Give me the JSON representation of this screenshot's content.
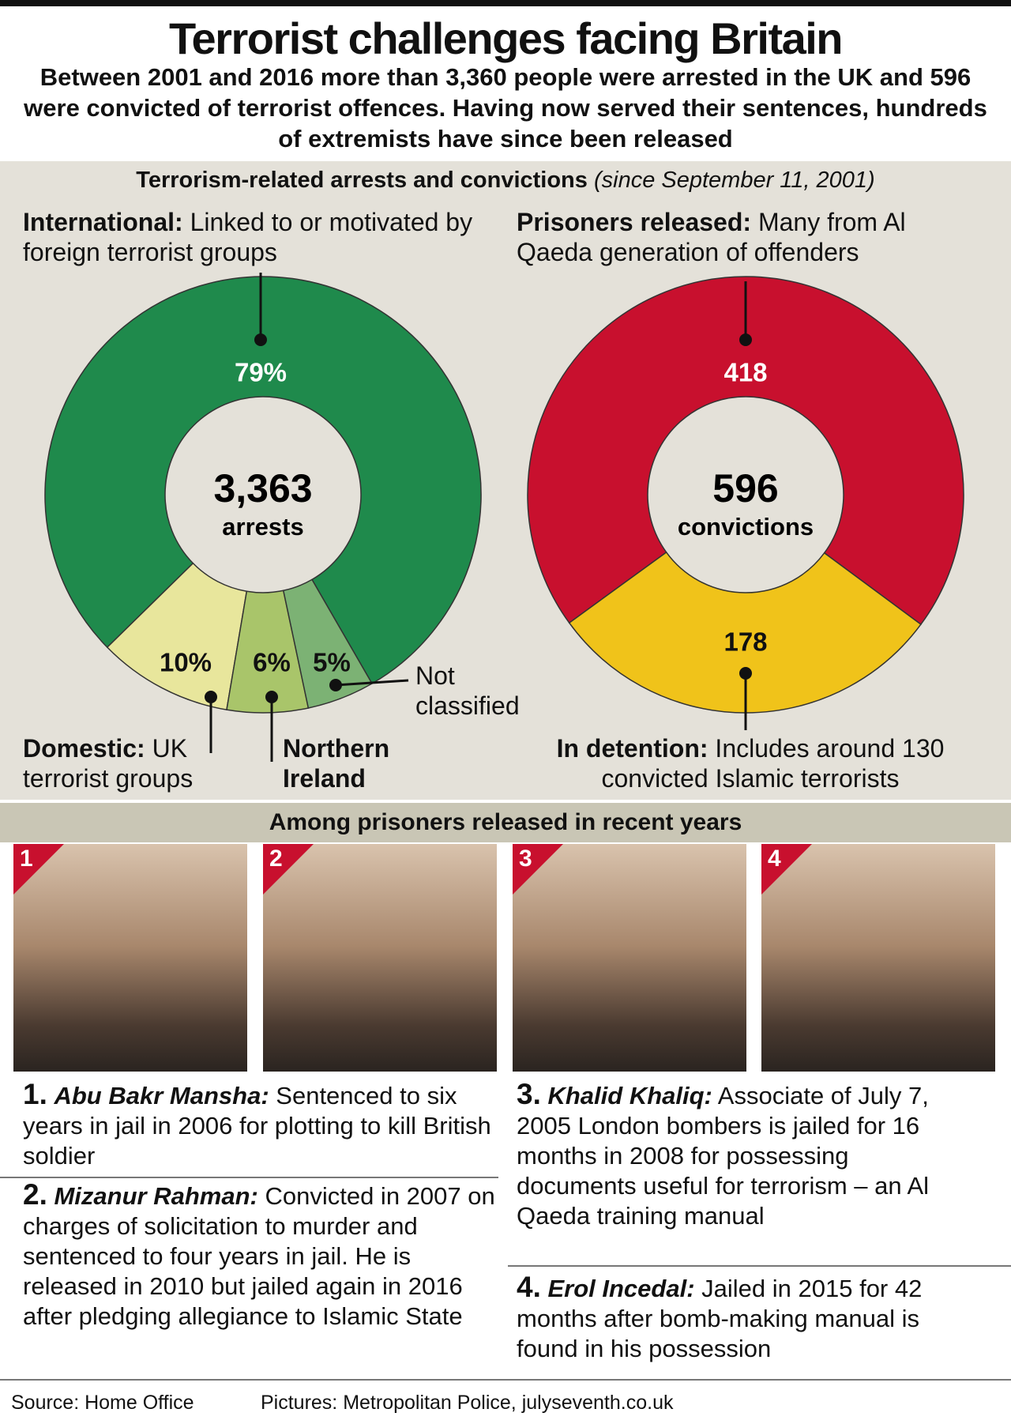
{
  "header": {
    "title": "Terrorist challenges facing Britain",
    "subtitle": "Between 2001 and 2016 more than 3,360 people were arrested in the UK and 596 were convicted of terrorist offences. Having now served their sentences, hundreds of extremists have since been released"
  },
  "section": {
    "title": "Terrorism-related arrests and convictions",
    "note": "(since September 11, 2001)"
  },
  "chart_data": [
    {
      "type": "donut",
      "categories": [
        "International:",
        "Domestic:",
        "Northern Ireland",
        "Not classified"
      ],
      "descriptions": [
        "Linked to or motivated by foreign terrorist groups",
        "UK terrorist groups",
        null,
        null
      ],
      "values": [
        79,
        10,
        6,
        5
      ],
      "value_labels": [
        "79%",
        "10%",
        "6%",
        "5%"
      ],
      "colors": [
        "#1f8a4c",
        "#e8e69c",
        "#a9c56a",
        "#7cb274"
      ],
      "center_text": "3,363",
      "center_caption": "arrests"
    },
    {
      "type": "donut",
      "categories": [
        "Prisoners released:",
        "In detention:"
      ],
      "descriptions": [
        "Many from Al Qaeda generation of offenders",
        "Includes around 130 convicted Islamic terrorists"
      ],
      "values": [
        418,
        178
      ],
      "colors": [
        "#c8102e",
        "#f0c31a"
      ],
      "center_text": "596",
      "center_caption": "convictions"
    }
  ],
  "profiles_heading": "Among prisoners released in recent years",
  "profiles": [
    {
      "badge": "1",
      "number": "1.",
      "name": "Abu Bakr Mansha:",
      "text": "Sentenced to six years in jail in 2006 for plotting to kill British soldier"
    },
    {
      "badge": "2",
      "number": "2.",
      "name": "Mizanur Rahman:",
      "text": "Convicted in 2007 on charges of solicitation to murder and sentenced to four years in jail. He is released in 2010 but jailed again in 2016 after pledging allegiance to Islamic State"
    },
    {
      "badge": "3",
      "number": "3.",
      "name": "Khalid Khaliq:",
      "text": "Associate of July 7, 2005 London bombers is jailed for 16 months in 2008 for possessing documents useful for terrorism – an Al Qaeda training manual"
    },
    {
      "badge": "4",
      "number": "4.",
      "name": "Erol Incedal:",
      "text": "Jailed in 2015 for 42 months after bomb-making manual is found in his possession"
    }
  ],
  "footer": {
    "source": "Source: Home Office",
    "pictures": "Pictures: Metropolitan Police, julyseventh.co.uk"
  }
}
